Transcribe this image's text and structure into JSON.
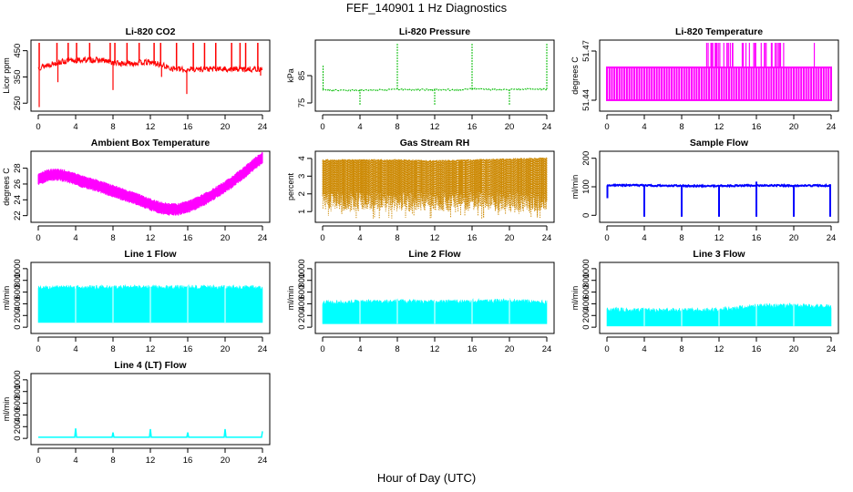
{
  "figure": {
    "title": "FEF_140901  1 Hz Diagnostics",
    "xlabel": "Hour of Day (UTC)"
  },
  "chart_data": [
    {
      "type": "line",
      "title": "Li-820 CO2",
      "ylabel": "Licor ppm",
      "color": "#ff0000",
      "xlim": [
        0,
        24
      ],
      "ylim": [
        230,
        480
      ],
      "xticks": [
        0,
        4,
        8,
        12,
        16,
        20,
        24
      ],
      "yticks": [
        250,
        350,
        450
      ],
      "series": [
        {
          "x": [
            0,
            1,
            2,
            3,
            4,
            5,
            6,
            7,
            8,
            9,
            10,
            11,
            12,
            13,
            14,
            15,
            15.9,
            16,
            17,
            18,
            19,
            20,
            21,
            22,
            23,
            24
          ],
          "values": [
            385,
            395,
            405,
            410,
            412,
            415,
            415,
            412,
            405,
            400,
            402,
            405,
            405,
            398,
            385,
            380,
            375,
            380,
            380,
            380,
            380,
            380,
            380,
            380,
            380,
            380
          ]
        }
      ]
    },
    {
      "type": "line",
      "title": "Li-820 Pressure",
      "ylabel": "kPa",
      "color": "#00bb00",
      "xlim": [
        0,
        24
      ],
      "ylim": [
        73,
        97
      ],
      "xticks": [
        0,
        4,
        8,
        12,
        16,
        20,
        24
      ],
      "yticks": [
        75,
        85
      ],
      "series": [
        {
          "x": [
            0,
            1,
            2,
            3,
            4,
            5,
            6,
            7,
            8,
            9,
            10,
            11,
            12,
            13,
            14,
            15,
            16,
            17,
            18,
            19,
            20,
            21,
            22,
            23,
            24
          ],
          "values": [
            79.8,
            79.6,
            79.6,
            79.6,
            79.7,
            79.7,
            79.8,
            79.8,
            80,
            79.8,
            79.8,
            79.8,
            79.8,
            79.8,
            79.8,
            79.9,
            80.2,
            80,
            79.9,
            79.9,
            79.9,
            79.9,
            80,
            80,
            80
          ]
        }
      ]
    },
    {
      "type": "line",
      "title": "Li-820 Temperature",
      "ylabel": "degrees C",
      "color": "#ff00ff",
      "xlim": [
        0,
        24
      ],
      "ylim": [
        51.435,
        51.475
      ],
      "xticks": [
        0,
        4,
        8,
        12,
        16,
        20,
        24
      ],
      "yticks": [
        51.44,
        51.47
      ],
      "series": [
        {
          "x": [
            0,
            24
          ],
          "values": [
            51.46,
            51.46
          ]
        }
      ]
    },
    {
      "type": "line",
      "title": "Ambient Box Temperature",
      "ylabel": "degrees C",
      "color": "#ff00ff",
      "xlim": [
        0,
        24
      ],
      "ylim": [
        21.5,
        29.8
      ],
      "xticks": [
        0,
        4,
        8,
        12,
        16,
        20,
        24
      ],
      "yticks": [
        22,
        24,
        26,
        28
      ],
      "series": [
        {
          "x": [
            0,
            1,
            2,
            3,
            4,
            5,
            6,
            7,
            8,
            9,
            10,
            11,
            12,
            13,
            14,
            15,
            16,
            17,
            18,
            19,
            20,
            21,
            22,
            23,
            24
          ],
          "values": [
            26.6,
            27.1,
            27.2,
            27.0,
            26.6,
            26.2,
            25.9,
            25.5,
            25.1,
            24.7,
            24.3,
            23.9,
            23.4,
            23.0,
            22.8,
            22.8,
            23.1,
            23.6,
            24.2,
            24.9,
            25.6,
            26.5,
            27.4,
            28.4,
            29.3
          ]
        }
      ]
    },
    {
      "type": "line",
      "title": "Gas Stream RH",
      "ylabel": "percent",
      "color": "#cc8800",
      "xlim": [
        0,
        24
      ],
      "ylim": [
        0.55,
        4.25
      ],
      "xticks": [
        0,
        4,
        8,
        12,
        16,
        20,
        24
      ],
      "yticks": [
        1,
        2,
        3,
        4
      ],
      "series": [
        {
          "x": [
            0,
            4,
            8,
            12,
            16,
            20,
            24
          ],
          "values": [
            3.9,
            3.9,
            3.9,
            3.85,
            3.9,
            3.95,
            4.0
          ]
        }
      ]
    },
    {
      "type": "line",
      "title": "Sample Flow",
      "ylabel": "ml/min",
      "color": "#0000ff",
      "xlim": [
        0,
        24
      ],
      "ylim": [
        -15,
        215
      ],
      "xticks": [
        0,
        4,
        8,
        12,
        16,
        20,
        24
      ],
      "yticks": [
        0,
        100,
        200
      ],
      "series": [
        {
          "x": [
            0,
            4,
            8,
            12,
            16,
            20,
            24
          ],
          "values": [
            105,
            105,
            103,
            103,
            105,
            104,
            104
          ]
        }
      ]
    },
    {
      "type": "area",
      "title": "Line 1 Flow",
      "ylabel": "ml/min",
      "color": "#00ffff",
      "xlim": [
        0,
        24
      ],
      "ylim": [
        -60,
        1060
      ],
      "xticks": [
        0,
        4,
        8,
        12,
        16,
        20,
        24
      ],
      "yticks": [
        0,
        200,
        400,
        600,
        800,
        1000
      ],
      "series": [
        {
          "x": [
            0,
            4,
            8,
            12,
            16,
            20,
            24
          ],
          "values": [
            710,
            715,
            720,
            720,
            720,
            720,
            720
          ]
        }
      ]
    },
    {
      "type": "area",
      "title": "Line 2 Flow",
      "ylabel": "ml/min",
      "color": "#00ffff",
      "xlim": [
        0,
        24
      ],
      "ylim": [
        -60,
        1060
      ],
      "xticks": [
        0,
        4,
        8,
        12,
        16,
        20,
        24
      ],
      "yticks": [
        0,
        200,
        400,
        600,
        800,
        1000
      ],
      "series": [
        {
          "x": [
            0,
            4,
            8,
            12,
            16,
            20,
            24
          ],
          "values": [
            460,
            470,
            480,
            470,
            480,
            490,
            460
          ]
        }
      ]
    },
    {
      "type": "area",
      "title": "Line 3 Flow",
      "ylabel": "ml/min",
      "color": "#00ffff",
      "xlim": [
        0,
        24
      ],
      "ylim": [
        -60,
        1060
      ],
      "xticks": [
        0,
        4,
        8,
        12,
        16,
        20,
        24
      ],
      "yticks": [
        0,
        200,
        400,
        600,
        800,
        1000
      ],
      "series": [
        {
          "x": [
            0,
            4,
            8,
            12,
            16,
            20,
            24
          ],
          "values": [
            340,
            330,
            330,
            340,
            400,
            410,
            390
          ]
        }
      ]
    },
    {
      "type": "line",
      "title": "Line 4 (LT) Flow",
      "ylabel": "ml/min",
      "color": "#00ffff",
      "xlim": [
        0,
        24
      ],
      "ylim": [
        -60,
        1060
      ],
      "xticks": [
        0,
        4,
        8,
        12,
        16,
        20,
        24
      ],
      "yticks": [
        0,
        200,
        400,
        600,
        800,
        1000
      ],
      "series": [
        {
          "x": [
            0,
            3.9,
            4,
            4.1,
            7.9,
            8,
            8.1,
            11.9,
            12,
            12.1,
            15.9,
            16,
            16.1,
            19.9,
            20,
            20.1,
            23.9,
            24
          ],
          "values": [
            20,
            20,
            170,
            20,
            20,
            100,
            20,
            20,
            160,
            20,
            20,
            100,
            20,
            20,
            160,
            20,
            20,
            120
          ]
        }
      ]
    }
  ]
}
